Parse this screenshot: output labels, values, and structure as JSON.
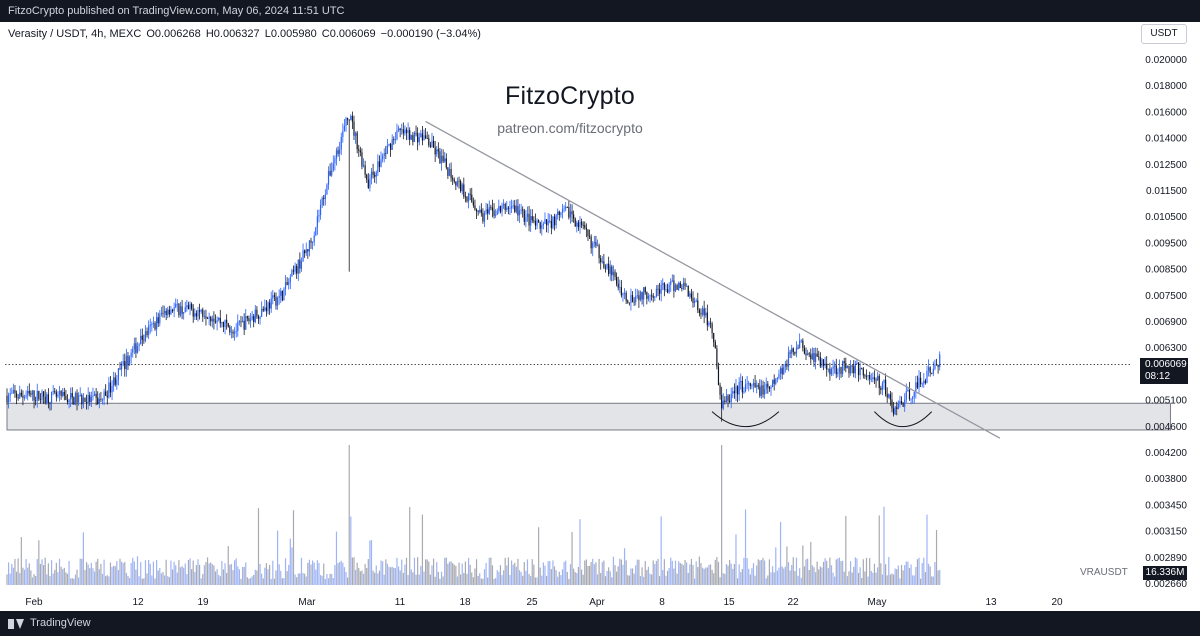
{
  "header": {
    "published_text": "FitzoCrypto published on TradingView.com, May 06, 2024 11:51 UTC"
  },
  "footer": {
    "brand": "TradingView"
  },
  "legend": {
    "symbol": "Verasity / USDT, 4h, MEXC",
    "open": "O0.006268",
    "high": "H0.006327",
    "low": "L0.005980",
    "close": "C0.006069",
    "change": "−0.000190 (−3.04%)"
  },
  "watermark": {
    "title": "FitzoCrypto",
    "subtitle": "patreon.com/fitzocrypto"
  },
  "currency_button": "USDT",
  "price_tag": {
    "price": "0.006069",
    "countdown": "08:12"
  },
  "volume_tag": "16.336M",
  "volume_symbol": "VRAUSDT",
  "colors": {
    "up": "#2962ff",
    "down": "#131722",
    "trendline": "#9598a1",
    "zone_fill": "#e3e4e8",
    "zone_border": "#787b86",
    "vol_up": "#9fb4f5",
    "vol_down": "#a8aab2"
  },
  "chart_data": {
    "type": "candlestick",
    "scale": "log",
    "grid": false,
    "price_axis_ticks": [
      "0.020000",
      "0.018000",
      "0.016000",
      "0.014000",
      "0.012500",
      "0.011500",
      "0.010500",
      "0.009500",
      "0.008500",
      "0.007500",
      "0.006900",
      "0.006300",
      "0.005700",
      "0.005100",
      "0.004600",
      "0.004200",
      "0.003800",
      "0.003450",
      "0.003150",
      "0.002890",
      "0.002660"
    ],
    "time_axis_ticks": [
      "Feb",
      "12",
      "19",
      "Mar",
      "11",
      "18",
      "25",
      "Apr",
      "8",
      "15",
      "22",
      "May",
      "13",
      "20"
    ],
    "last_price": 0.006069,
    "last_volume": "16.336M",
    "price_path": [
      {
        "date": "2024-02-01",
        "price": 0.0054
      },
      {
        "date": "2024-02-08",
        "price": 0.0053
      },
      {
        "date": "2024-02-12",
        "price": 0.0066
      },
      {
        "date": "2024-02-15",
        "price": 0.0075
      },
      {
        "date": "2024-02-19",
        "price": 0.0074
      },
      {
        "date": "2024-02-22",
        "price": 0.0069
      },
      {
        "date": "2024-02-27",
        "price": 0.0079
      },
      {
        "date": "2024-03-01",
        "price": 0.0096
      },
      {
        "date": "2024-03-03",
        "price": 0.0125
      },
      {
        "date": "2024-03-05",
        "price": 0.0155
      },
      {
        "date": "2024-03-07",
        "price": 0.012
      },
      {
        "date": "2024-03-10",
        "price": 0.0145
      },
      {
        "date": "2024-03-13",
        "price": 0.0142
      },
      {
        "date": "2024-03-16",
        "price": 0.0122
      },
      {
        "date": "2024-03-19",
        "price": 0.0106
      },
      {
        "date": "2024-03-22",
        "price": 0.011
      },
      {
        "date": "2024-03-25",
        "price": 0.0101
      },
      {
        "date": "2024-03-28",
        "price": 0.0108
      },
      {
        "date": "2024-03-31",
        "price": 0.0093
      },
      {
        "date": "2024-04-03",
        "price": 0.0078
      },
      {
        "date": "2024-04-06",
        "price": 0.008
      },
      {
        "date": "2024-04-09",
        "price": 0.0082
      },
      {
        "date": "2024-04-12",
        "price": 0.007
      },
      {
        "date": "2024-04-13",
        "price": 0.0052
      },
      {
        "date": "2024-04-15",
        "price": 0.0056
      },
      {
        "date": "2024-04-18",
        "price": 0.0055
      },
      {
        "date": "2024-04-21",
        "price": 0.0066
      },
      {
        "date": "2024-04-24",
        "price": 0.006
      },
      {
        "date": "2024-04-27",
        "price": 0.006
      },
      {
        "date": "2024-04-30",
        "price": 0.0056
      },
      {
        "date": "2024-05-01",
        "price": 0.0051
      },
      {
        "date": "2024-05-03",
        "price": 0.0055
      },
      {
        "date": "2024-05-06",
        "price": 0.0062
      }
    ],
    "annotations": {
      "trendline": {
        "from": {
          "date": "2024-03-13",
          "price": 0.0151
        },
        "to": {
          "date": "2024-05-09",
          "price": 0.0049
        }
      },
      "support_zone": {
        "low": 0.00475,
        "high": 0.00525,
        "from": "2024-02-01",
        "to": "2024-05-30"
      },
      "rounded_bottoms": [
        {
          "from": "2024-04-12",
          "to": "2024-04-19",
          "price": 0.00505
        },
        {
          "from": "2024-04-29",
          "to": "2024-05-05",
          "price": 0.00505
        }
      ],
      "spikes": [
        {
          "date": "2024-03-05",
          "low": 0.0086
        },
        {
          "date": "2024-04-13",
          "low": 0.0049
        }
      ]
    }
  }
}
